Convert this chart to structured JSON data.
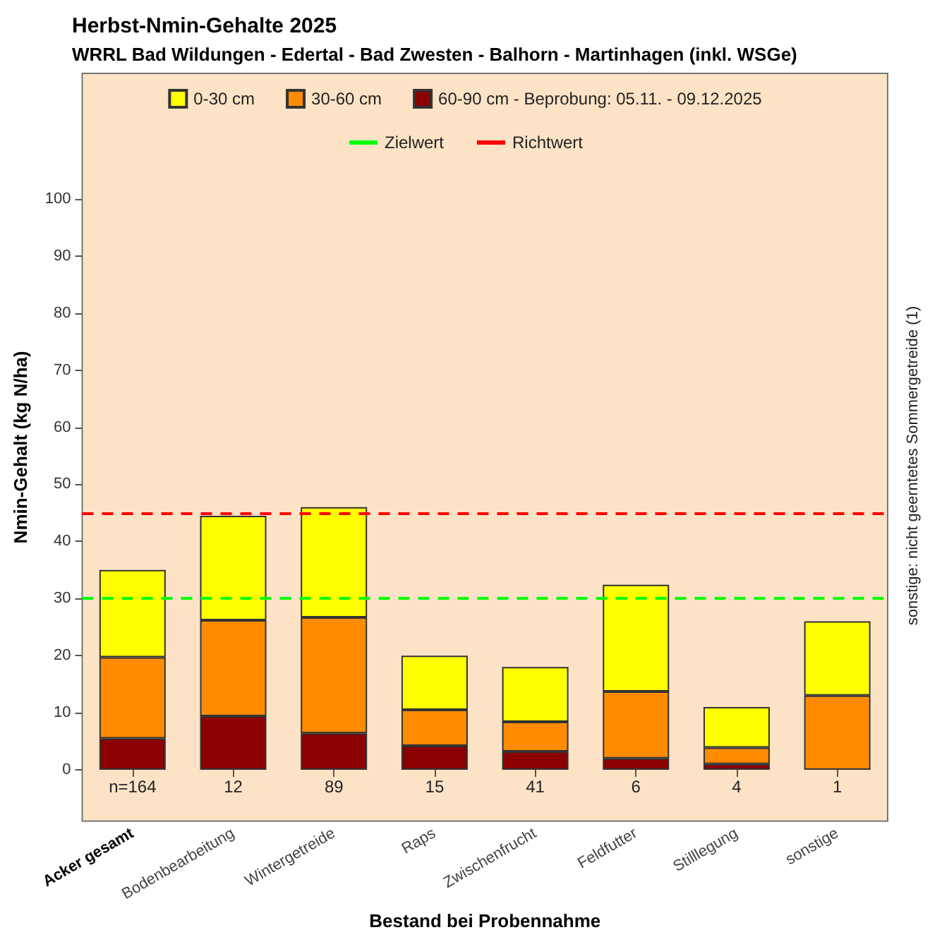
{
  "chart_data": {
    "type": "bar",
    "title": "Herbst-Nmin-Gehalte 2025",
    "subtitle": "WRRL Bad Wildungen - Edertal - Bad Zwesten - Balhorn - Martinhagen (inkl. WSGe)",
    "xlabel": "Bestand bei Probennahme",
    "ylabel": "Nmin-Gehalt (kg N/ha)",
    "categories": [
      "Acker gesamt",
      "Bodenbearbeitung",
      "Wintergetreide",
      "Raps",
      "Zwischenfrucht",
      "Feldfutter",
      "Stilllegung",
      "sonstige"
    ],
    "stacked": true,
    "series": [
      {
        "name": "60-90 cm - Beprobung: 05.11. - 09.12.2025",
        "color": "#8b0000",
        "values": [
          5.5,
          9.4,
          6.4,
          4.2,
          3.2,
          2.0,
          1.0,
          null
        ]
      },
      {
        "name": "30-60 cm",
        "color": "#ff8c00",
        "values": [
          14.2,
          16.8,
          20.3,
          6.3,
          5.2,
          11.7,
          2.9,
          13.0
        ]
      },
      {
        "name": "0-30 cm",
        "color": "#ffff00",
        "values": [
          15.3,
          18.3,
          19.3,
          9.5,
          9.6,
          18.7,
          7.1,
          13.0
        ]
      }
    ],
    "ylim": [
      -9,
      122
    ],
    "yticks": [
      0,
      10,
      20,
      30,
      40,
      50,
      60,
      70,
      80,
      90,
      100
    ],
    "ref_lines": [
      {
        "axis": "y",
        "value": 30,
        "label": "Zielwert",
        "color": "#00ff00",
        "line_style": "dashed"
      },
      {
        "axis": "y",
        "value": 45,
        "label": "Richtwert",
        "color": "#ff0000",
        "line_style": "dashed"
      }
    ],
    "annotations": [
      "n=164",
      "12",
      "89",
      "15",
      "41",
      "6",
      "4",
      "1",
      "sonstige: nicht geerntetes Sommergetreide (1)"
    ],
    "legend": "top",
    "grid": false
  }
}
